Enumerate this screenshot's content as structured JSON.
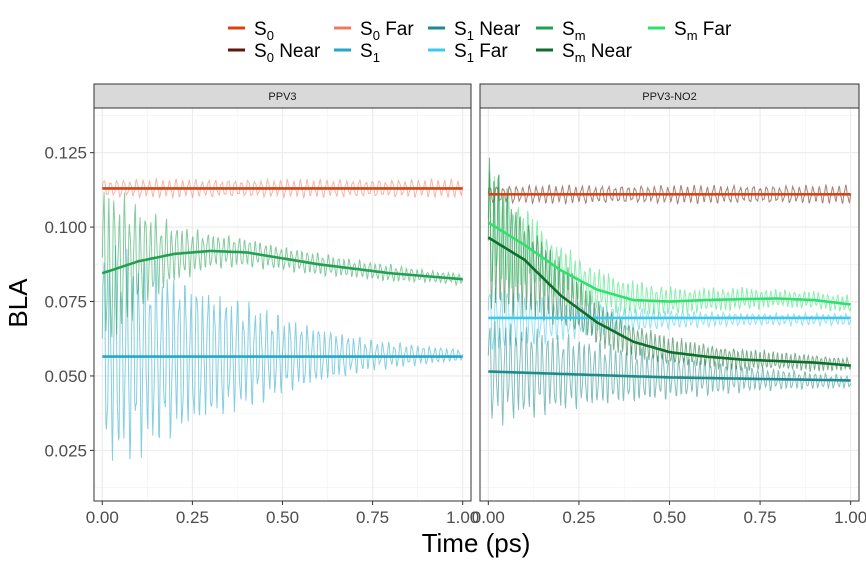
{
  "chart_data": {
    "type": "line",
    "xlabel": "Time (ps)",
    "ylabel": "BLA",
    "xlim": [
      0,
      1
    ],
    "ylim": [
      0.008,
      0.14
    ],
    "x_ticks": [
      {
        "value": 0,
        "label": "0.00"
      },
      {
        "value": 0.25,
        "label": "0.25"
      },
      {
        "value": 0.5,
        "label": "0.50"
      },
      {
        "value": 0.75,
        "label": "0.75"
      },
      {
        "value": 1,
        "label": "1.00"
      }
    ],
    "y_ticks": [
      {
        "value": 0.025,
        "label": "0.025"
      },
      {
        "value": 0.05,
        "label": "0.050"
      },
      {
        "value": 0.075,
        "label": "0.075"
      },
      {
        "value": 0.1,
        "label": "0.100"
      },
      {
        "value": 0.125,
        "label": "0.125"
      }
    ],
    "grid": true,
    "legend_position": "top",
    "legend": [
      {
        "base": "S",
        "sub": "0",
        "suffix": "",
        "color": "#d84315"
      },
      {
        "base": "S",
        "sub": "0",
        "suffix": " Near",
        "color": "#5d1a0b"
      },
      {
        "base": "S",
        "sub": "0",
        "suffix": " Far",
        "color": "#f07a60"
      },
      {
        "base": "S",
        "sub": "1",
        "suffix": "",
        "color": "#22a8c9"
      },
      {
        "base": "S",
        "sub": "1",
        "suffix": " Near",
        "color": "#1f8a8a"
      },
      {
        "base": "S",
        "sub": "1",
        "suffix": " Far",
        "color": "#3dc8ec"
      },
      {
        "base": "S",
        "sub": "m",
        "suffix": "",
        "color": "#20a050"
      },
      {
        "base": "S",
        "sub": "m",
        "suffix": " Near",
        "color": "#0e6e2b"
      },
      {
        "base": "S",
        "sub": "m",
        "suffix": " Far",
        "color": "#2fe070"
      }
    ],
    "panels": [
      {
        "strip": "PPV3",
        "series": [
          {
            "key": "S0",
            "color": "#d84315",
            "x": [
              0,
              0.25,
              0.5,
              0.75,
              1.0
            ],
            "fit": [
              0.113,
              0.113,
              0.113,
              0.113,
              0.113
            ],
            "raw": {
              "color": "#f07a60",
              "mean": [
                0.113,
                0.113,
                0.113,
                0.113,
                0.113
              ],
              "amp": [
                0.003,
                0.003,
                0.003,
                0.003,
                0.003
              ]
            }
          },
          {
            "key": "S1",
            "color": "#22a8c9",
            "x": [
              0,
              0.25,
              0.5,
              0.75,
              1.0
            ],
            "fit": [
              0.0565,
              0.0565,
              0.0565,
              0.0565,
              0.0565
            ],
            "raw": {
              "color": "#22a8c9",
              "mean": [
                0.057,
                0.057,
                0.057,
                0.057,
                0.057
              ],
              "amp": [
                0.038,
                0.025,
                0.013,
                0.005,
                0.002
              ]
            }
          },
          {
            "key": "Sm",
            "color": "#20a050",
            "x": [
              0,
              0.1,
              0.2,
              0.3,
              0.4,
              0.5,
              0.6,
              0.7,
              0.8,
              0.9,
              1.0
            ],
            "fit": [
              0.0845,
              0.0885,
              0.091,
              0.092,
              0.0915,
              0.0895,
              0.0875,
              0.086,
              0.0845,
              0.0835,
              0.0825
            ],
            "raw": {
              "color": "#20a050",
              "mean": [
                0.085,
                0.089,
                0.091,
                0.092,
                0.0915,
                0.0895,
                0.0875,
                0.086,
                0.0845,
                0.0835,
                0.0825
              ],
              "amp": [
                0.03,
                0.018,
                0.01,
                0.006,
                0.005,
                0.004,
                0.004,
                0.003,
                0.003,
                0.002,
                0.002
              ]
            }
          }
        ]
      },
      {
        "strip": "PPV3-NO2",
        "series": [
          {
            "key": "S0 Near",
            "color": "#d84315",
            "x": [
              0,
              0.25,
              0.5,
              0.75,
              1.0
            ],
            "fit": [
              0.111,
              0.111,
              0.111,
              0.111,
              0.111
            ],
            "raw": {
              "color": "#5d1a0b",
              "mean": [
                0.111,
                0.111,
                0.111,
                0.111,
                0.111
              ],
              "amp": [
                0.003,
                0.003,
                0.003,
                0.003,
                0.003
              ]
            }
          },
          {
            "key": "S1 Far",
            "color": "#3dc8ec",
            "x": [
              0,
              0.25,
              0.5,
              0.75,
              1.0
            ],
            "fit": [
              0.0695,
              0.0695,
              0.0695,
              0.0695,
              0.0695
            ],
            "raw": {
              "color": "#3dc8ec",
              "mean": [
                0.069,
                0.069,
                0.069,
                0.069,
                0.069
              ],
              "amp": [
                0.012,
                0.006,
                0.003,
                0.002,
                0.002
              ]
            }
          },
          {
            "key": "S1 Near",
            "color": "#1f8a8a",
            "x": [
              0,
              0.25,
              0.5,
              0.75,
              1.0
            ],
            "fit": [
              0.0515,
              0.0505,
              0.0495,
              0.049,
              0.0485
            ],
            "raw": {
              "color": "#1f8a8a",
              "mean": [
                0.052,
                0.051,
                0.05,
                0.049,
                0.048
              ],
              "amp": [
                0.018,
                0.012,
                0.008,
                0.004,
                0.002
              ]
            }
          },
          {
            "key": "Sm Far",
            "color": "#2fe070",
            "x": [
              0,
              0.1,
              0.2,
              0.3,
              0.4,
              0.5,
              0.6,
              0.7,
              0.8,
              0.9,
              1.0
            ],
            "fit": [
              0.1015,
              0.094,
              0.0855,
              0.079,
              0.0755,
              0.075,
              0.0755,
              0.0758,
              0.076,
              0.0755,
              0.074
            ],
            "raw": {
              "color": "#2fe070",
              "mean": [
                0.1,
                0.093,
                0.085,
                0.079,
                0.076,
                0.075,
                0.0755,
                0.076,
                0.076,
                0.0755,
                0.074
              ],
              "amp": [
                0.022,
                0.014,
                0.009,
                0.007,
                0.006,
                0.005,
                0.004,
                0.004,
                0.003,
                0.003,
                0.003
              ]
            }
          },
          {
            "key": "Sm Near",
            "color": "#0e6e2b",
            "x": [
              0,
              0.1,
              0.2,
              0.3,
              0.4,
              0.5,
              0.6,
              0.7,
              0.8,
              0.9,
              1.0
            ],
            "fit": [
              0.0965,
              0.089,
              0.077,
              0.068,
              0.0615,
              0.058,
              0.0565,
              0.0555,
              0.055,
              0.0545,
              0.0535
            ],
            "raw": {
              "color": "#0e6e2b",
              "mean": [
                0.096,
                0.089,
                0.077,
                0.068,
                0.062,
                0.058,
                0.057,
                0.0555,
                0.055,
                0.0545,
                0.054
              ],
              "amp": [
                0.028,
                0.018,
                0.012,
                0.008,
                0.006,
                0.005,
                0.004,
                0.004,
                0.003,
                0.003,
                0.002
              ]
            }
          }
        ]
      }
    ]
  }
}
